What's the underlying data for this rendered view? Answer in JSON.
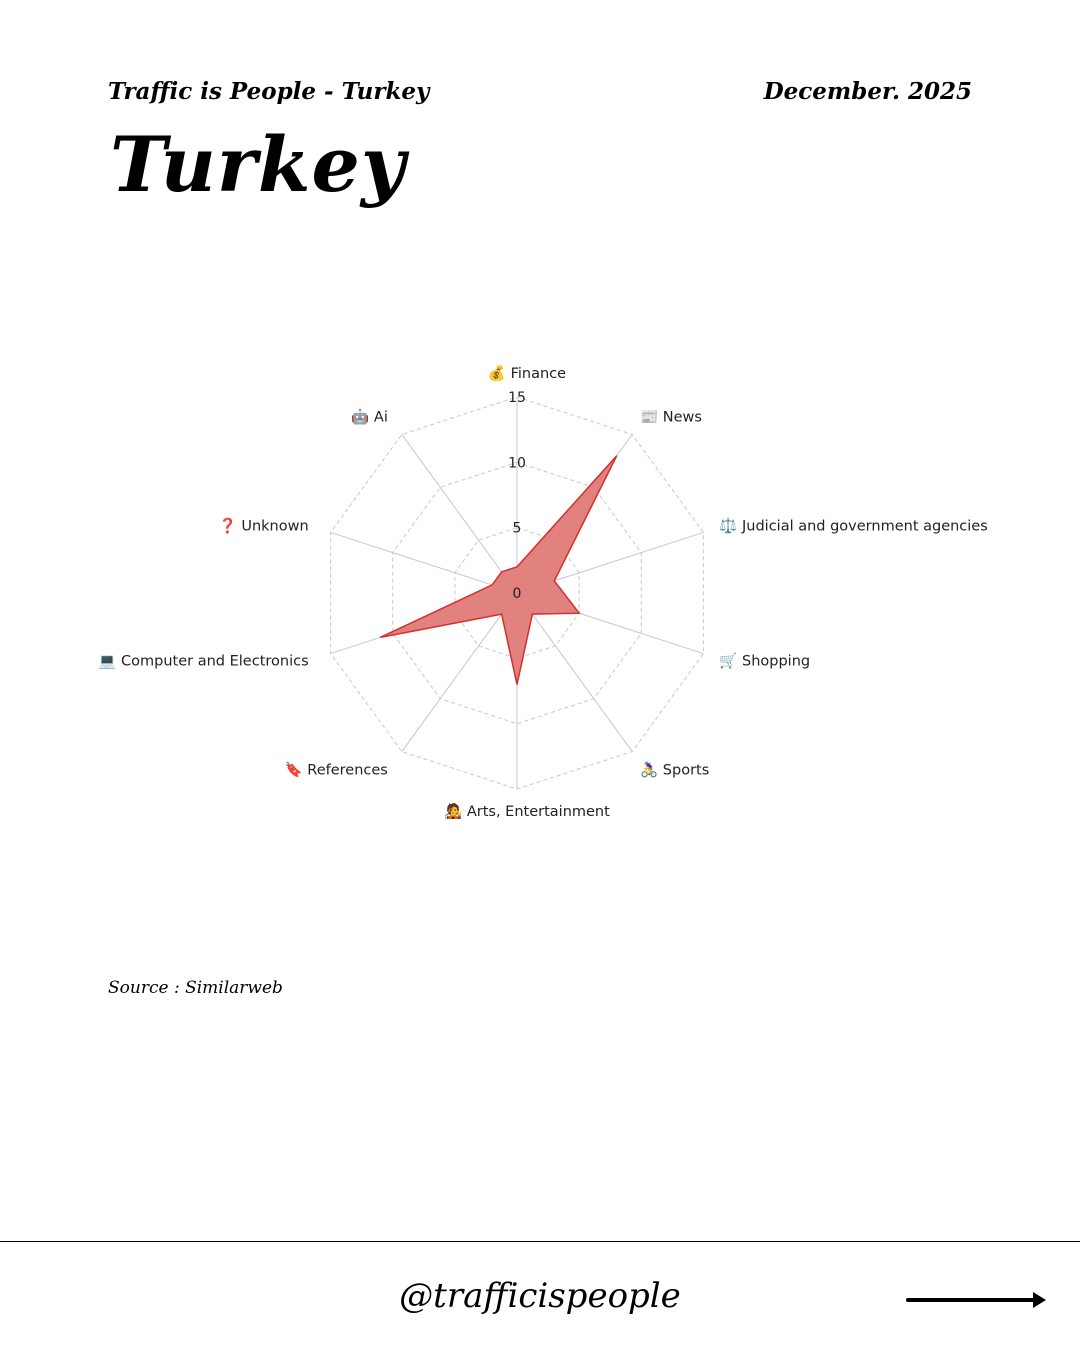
{
  "header": {
    "subtitle": "Traffic is People - Turkey",
    "date": "December. 2025",
    "title": "Turkey"
  },
  "source": "Source : Similarweb",
  "footer": {
    "handle": "@trafficispeople",
    "arrow_icon": "arrow-right-icon"
  },
  "chart_data": {
    "type": "radar",
    "categories": [
      "💰 Finance",
      "📰 News",
      "⚖️ Judicial and government agencies",
      "🛒 Shopping",
      "🚴‍♀️ Sports",
      "🧑‍🎤 Arts, Entertainment",
      "🔖 References",
      "💻 Computer and Electronics",
      "❓ Unknown",
      "🤖 Ai"
    ],
    "values": [
      2,
      13,
      3,
      5,
      2,
      7,
      2,
      11,
      2,
      2
    ],
    "rlim": [
      0,
      15
    ],
    "ticks": [
      0,
      5,
      10,
      15
    ],
    "tick_labels": [
      "0",
      "5",
      "10",
      "15"
    ],
    "grid": true,
    "fill_color": "#e07b78",
    "line_color": "#d42f2a"
  }
}
